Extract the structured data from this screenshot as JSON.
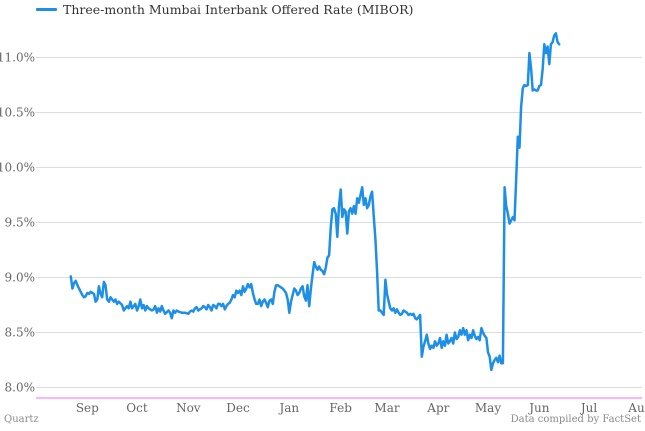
{
  "chart_data": {
    "type": "line",
    "title": "",
    "xlabel": "",
    "ylabel": "",
    "legend": {
      "placement": "top-left",
      "entries": [
        "Three-month Mumbai Interbank Offered Rate (MIBOR)"
      ]
    },
    "grid": "horizontal",
    "ylim": [
      8.0,
      11.25
    ],
    "yticks": [
      "8.0%",
      "8.5%",
      "9.0%",
      "9.5%",
      "10.0%",
      "10.5%",
      "11.0%"
    ],
    "ytick_values": [
      8.0,
      8.5,
      9.0,
      9.5,
      10.0,
      10.5,
      11.0
    ],
    "xticks": [
      "Sep",
      "Oct",
      "Nov",
      "Dec",
      "Jan",
      "Feb",
      "Mar",
      "Apr",
      "May",
      "Jun",
      "Jul",
      "Aug"
    ],
    "xtick_days": [
      31,
      61,
      92,
      122,
      153,
      184,
      212,
      243,
      273,
      304,
      334,
      365
    ],
    "x_unit": "days from Aug 1 (12-month span ending late Aug)",
    "colors": {
      "line": "#1e8fe6",
      "grid": "#dddddd",
      "baseline": "#ff66ff"
    },
    "series": [
      {
        "name": "Three-month Mumbai Interbank Offered Rate (MIBOR)",
        "points": [
          [
            21,
            9.01
          ],
          [
            22,
            8.9
          ],
          [
            23,
            8.95
          ],
          [
            24,
            8.97
          ],
          [
            25,
            8.93
          ],
          [
            26,
            8.9
          ],
          [
            27,
            8.87
          ],
          [
            28,
            8.84
          ],
          [
            29,
            8.82
          ],
          [
            30,
            8.83
          ],
          [
            31,
            8.86
          ],
          [
            32,
            8.85
          ],
          [
            33,
            8.87
          ],
          [
            34,
            8.86
          ],
          [
            35,
            8.85
          ],
          [
            36,
            8.78
          ],
          [
            37,
            8.8
          ],
          [
            38,
            8.92
          ],
          [
            39,
            8.85
          ],
          [
            40,
            8.82
          ],
          [
            41,
            8.96
          ],
          [
            42,
            8.93
          ],
          [
            43,
            8.8
          ],
          [
            44,
            8.78
          ],
          [
            45,
            8.82
          ],
          [
            46,
            8.8
          ],
          [
            47,
            8.78
          ],
          [
            48,
            8.8
          ],
          [
            49,
            8.76
          ],
          [
            50,
            8.78
          ],
          [
            52,
            8.75
          ],
          [
            53,
            8.7
          ],
          [
            54,
            8.72
          ],
          [
            55,
            8.74
          ],
          [
            56,
            8.72
          ],
          [
            57,
            8.78
          ],
          [
            58,
            8.72
          ],
          [
            59,
            8.74
          ],
          [
            60,
            8.76
          ],
          [
            61,
            8.7
          ],
          [
            62,
            8.74
          ],
          [
            63,
            8.8
          ],
          [
            64,
            8.72
          ],
          [
            65,
            8.75
          ],
          [
            66,
            8.7
          ],
          [
            67,
            8.74
          ],
          [
            68,
            8.72
          ],
          [
            70,
            8.7
          ],
          [
            71,
            8.71
          ],
          [
            72,
            8.74
          ],
          [
            73,
            8.68
          ],
          [
            74,
            8.72
          ],
          [
            75,
            8.69
          ],
          [
            76,
            8.74
          ],
          [
            77,
            8.7
          ],
          [
            78,
            8.67
          ],
          [
            80,
            8.7
          ],
          [
            81,
            8.68
          ],
          [
            82,
            8.63
          ],
          [
            83,
            8.7
          ],
          [
            84,
            8.68
          ],
          [
            85,
            8.7
          ],
          [
            86,
            8.69
          ],
          [
            88,
            8.68
          ],
          [
            90,
            8.68
          ],
          [
            92,
            8.67
          ],
          [
            93,
            8.69
          ],
          [
            94,
            8.7
          ],
          [
            95,
            8.69
          ],
          [
            96,
            8.72
          ],
          [
            97,
            8.73
          ],
          [
            98,
            8.7
          ],
          [
            99,
            8.71
          ],
          [
            100,
            8.72
          ],
          [
            101,
            8.74
          ],
          [
            102,
            8.73
          ],
          [
            103,
            8.71
          ],
          [
            104,
            8.75
          ],
          [
            105,
            8.73
          ],
          [
            106,
            8.7
          ],
          [
            107,
            8.75
          ],
          [
            108,
            8.74
          ],
          [
            109,
            8.72
          ],
          [
            110,
            8.76
          ],
          [
            111,
            8.76
          ],
          [
            112,
            8.74
          ],
          [
            113,
            8.76
          ],
          [
            114,
            8.71
          ],
          [
            115,
            8.74
          ],
          [
            116,
            8.76
          ],
          [
            117,
            8.77
          ],
          [
            118,
            8.8
          ],
          [
            119,
            8.84
          ],
          [
            120,
            8.82
          ],
          [
            121,
            8.88
          ],
          [
            122,
            8.86
          ],
          [
            123,
            8.88
          ],
          [
            124,
            8.84
          ],
          [
            125,
            8.92
          ],
          [
            126,
            8.87
          ],
          [
            127,
            8.9
          ],
          [
            128,
            8.94
          ],
          [
            129,
            8.91
          ],
          [
            130,
            8.94
          ],
          [
            131,
            8.86
          ],
          [
            132,
            8.8
          ],
          [
            133,
            8.76
          ],
          [
            134,
            8.76
          ],
          [
            135,
            8.8
          ],
          [
            136,
            8.74
          ],
          [
            137,
            8.78
          ],
          [
            138,
            8.8
          ],
          [
            139,
            8.77
          ],
          [
            140,
            8.73
          ],
          [
            141,
            8.79
          ],
          [
            142,
            8.8
          ],
          [
            143,
            8.76
          ],
          [
            144,
            8.87
          ],
          [
            145,
            8.93
          ],
          [
            146,
            8.93
          ],
          [
            147,
            8.92
          ],
          [
            148,
            8.91
          ],
          [
            149,
            8.9
          ],
          [
            150,
            8.88
          ],
          [
            151,
            8.86
          ],
          [
            152,
            8.8
          ],
          [
            153,
            8.68
          ],
          [
            154,
            8.78
          ],
          [
            155,
            8.84
          ],
          [
            156,
            8.9
          ],
          [
            157,
            8.88
          ],
          [
            158,
            8.84
          ],
          [
            159,
            8.86
          ],
          [
            160,
            8.9
          ],
          [
            161,
            8.92
          ],
          [
            162,
            8.83
          ],
          [
            163,
            8.79
          ],
          [
            164,
            8.93
          ],
          [
            165,
            8.74
          ],
          [
            166,
            8.9
          ],
          [
            167,
            9.02
          ],
          [
            168,
            9.14
          ],
          [
            169,
            9.1
          ],
          [
            170,
            9.07
          ],
          [
            171,
            9.1
          ],
          [
            172,
            9.07
          ],
          [
            173,
            9.06
          ],
          [
            174,
            9.03
          ],
          [
            175,
            9.09
          ],
          [
            176,
            9.18
          ],
          [
            177,
            9.2
          ],
          [
            178,
            9.45
          ],
          [
            179,
            9.62
          ],
          [
            180,
            9.63
          ],
          [
            181,
            9.58
          ],
          [
            182,
            9.37
          ],
          [
            183,
            9.65
          ],
          [
            184,
            9.8
          ],
          [
            185,
            9.55
          ],
          [
            186,
            9.62
          ],
          [
            187,
            9.6
          ],
          [
            188,
            9.4
          ],
          [
            189,
            9.6
          ],
          [
            190,
            9.63
          ],
          [
            191,
            9.58
          ],
          [
            192,
            9.65
          ],
          [
            193,
            9.58
          ],
          [
            194,
            9.72
          ],
          [
            195,
            9.68
          ],
          [
            196,
            9.75
          ],
          [
            197,
            9.82
          ],
          [
            198,
            9.66
          ],
          [
            199,
            9.72
          ],
          [
            200,
            9.63
          ],
          [
            201,
            9.66
          ],
          [
            202,
            9.74
          ],
          [
            203,
            9.78
          ],
          [
            204,
            9.55
          ],
          [
            205,
            9.35
          ],
          [
            206,
            9.05
          ],
          [
            207,
            8.7
          ],
          [
            208,
            8.7
          ],
          [
            209,
            8.68
          ],
          [
            210,
            8.66
          ],
          [
            211,
            8.98
          ],
          [
            212,
            8.85
          ],
          [
            213,
            8.78
          ],
          [
            214,
            8.72
          ],
          [
            215,
            8.7
          ],
          [
            216,
            8.72
          ],
          [
            217,
            8.68
          ],
          [
            218,
            8.71
          ],
          [
            219,
            8.68
          ],
          [
            220,
            8.66
          ],
          [
            221,
            8.67
          ],
          [
            222,
            8.7
          ],
          [
            223,
            8.69
          ],
          [
            224,
            8.68
          ],
          [
            225,
            8.66
          ],
          [
            226,
            8.67
          ],
          [
            227,
            8.66
          ],
          [
            228,
            8.67
          ],
          [
            229,
            8.63
          ],
          [
            230,
            8.62
          ],
          [
            231,
            8.64
          ],
          [
            232,
            8.66
          ],
          [
            233,
            8.28
          ],
          [
            234,
            8.37
          ],
          [
            235,
            8.42
          ],
          [
            236,
            8.48
          ],
          [
            237,
            8.4
          ],
          [
            238,
            8.35
          ],
          [
            239,
            8.38
          ],
          [
            240,
            8.36
          ],
          [
            241,
            8.42
          ],
          [
            242,
            8.38
          ],
          [
            243,
            8.4
          ],
          [
            244,
            8.45
          ],
          [
            245,
            8.36
          ],
          [
            246,
            8.42
          ],
          [
            247,
            8.38
          ],
          [
            248,
            8.48
          ],
          [
            249,
            8.4
          ],
          [
            250,
            8.42
          ],
          [
            251,
            8.45
          ],
          [
            252,
            8.4
          ],
          [
            253,
            8.5
          ],
          [
            254,
            8.44
          ],
          [
            255,
            8.46
          ],
          [
            256,
            8.52
          ],
          [
            257,
            8.48
          ],
          [
            258,
            8.54
          ],
          [
            259,
            8.48
          ],
          [
            260,
            8.52
          ],
          [
            261,
            8.43
          ],
          [
            262,
            8.48
          ],
          [
            263,
            8.45
          ],
          [
            264,
            8.52
          ],
          [
            265,
            8.47
          ],
          [
            266,
            8.44
          ],
          [
            267,
            8.46
          ],
          [
            268,
            8.43
          ],
          [
            269,
            8.54
          ],
          [
            270,
            8.5
          ],
          [
            271,
            8.47
          ],
          [
            272,
            8.45
          ],
          [
            273,
            8.32
          ],
          [
            274,
            8.28
          ],
          [
            275,
            8.16
          ],
          [
            276,
            8.22
          ],
          [
            277,
            8.25
          ],
          [
            278,
            8.27
          ],
          [
            279,
            8.23
          ],
          [
            280,
            8.29
          ],
          [
            281,
            8.22
          ],
          [
            282,
            8.22
          ],
          [
            283,
            9.82
          ],
          [
            284,
            9.65
          ],
          [
            285,
            9.58
          ],
          [
            286,
            9.49
          ],
          [
            287,
            9.52
          ],
          [
            288,
            9.55
          ],
          [
            289,
            9.52
          ],
          [
            290,
            9.9
          ],
          [
            291,
            10.28
          ],
          [
            292,
            10.18
          ],
          [
            293,
            10.55
          ],
          [
            294,
            10.72
          ],
          [
            295,
            10.75
          ],
          [
            296,
            10.74
          ],
          [
            297,
            10.75
          ],
          [
            298,
            11.04
          ],
          [
            299,
            10.9
          ],
          [
            300,
            10.7
          ],
          [
            301,
            10.71
          ],
          [
            302,
            10.7
          ],
          [
            303,
            10.7
          ],
          [
            304,
            10.74
          ],
          [
            305,
            10.75
          ],
          [
            306,
            10.9
          ],
          [
            307,
            11.12
          ],
          [
            308,
            11.04
          ],
          [
            309,
            11.1
          ],
          [
            310,
            10.94
          ],
          [
            311,
            11.12
          ],
          [
            312,
            11.14
          ],
          [
            313,
            11.2
          ],
          [
            314,
            11.22
          ],
          [
            315,
            11.14
          ],
          [
            316,
            11.12
          ]
        ]
      }
    ]
  },
  "legend": {
    "label": "Three-month Mumbai Interbank Offered Rate (MIBOR)"
  },
  "footer": {
    "left": "Quartz",
    "right": "Data compiled by FactSet"
  }
}
